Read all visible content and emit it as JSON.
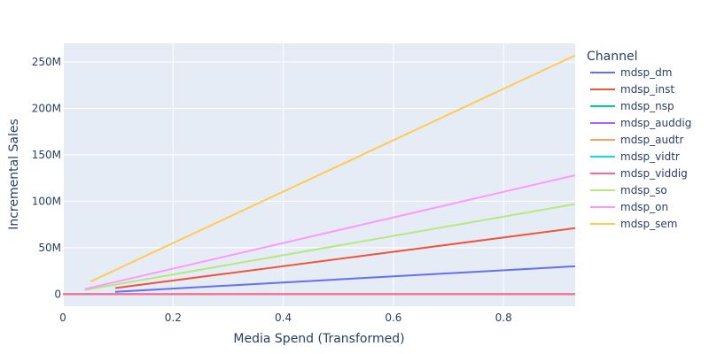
{
  "chart_data": {
    "type": "line",
    "xlabel": "Media Spend (Transformed)",
    "ylabel": "Incremental Sales",
    "xlim": [
      0,
      0.93
    ],
    "ylim": [
      -13000000,
      270000000
    ],
    "xticks": [
      {
        "value": 0,
        "label": "0"
      },
      {
        "value": 0.2,
        "label": "0.2"
      },
      {
        "value": 0.4,
        "label": "0.4"
      },
      {
        "value": 0.6,
        "label": "0.6"
      },
      {
        "value": 0.8,
        "label": "0.8"
      }
    ],
    "yticks": [
      {
        "value": 0,
        "label": "0"
      },
      {
        "value": 50000000,
        "label": "50M"
      },
      {
        "value": 100000000,
        "label": "100M"
      },
      {
        "value": 150000000,
        "label": "150M"
      },
      {
        "value": 200000000,
        "label": "200M"
      },
      {
        "value": 250000000,
        "label": "250M"
      }
    ],
    "grid": true,
    "legend": {
      "title": "Channel",
      "placement": "right"
    },
    "series": [
      {
        "name": "mdsp_dm",
        "color": "#636efa",
        "x": [
          0.095,
          0.93
        ],
        "y": [
          2500000,
          30000000
        ]
      },
      {
        "name": "mdsp_inst",
        "color": "#EF553B",
        "x": [
          0.095,
          0.93
        ],
        "y": [
          6500000,
          71000000
        ]
      },
      {
        "name": "mdsp_nsp",
        "color": "#00cc96",
        "x": [
          0,
          0.93
        ],
        "y": [
          0,
          0
        ]
      },
      {
        "name": "mdsp_auddig",
        "color": "#ab63fa",
        "x": [
          0,
          0.93
        ],
        "y": [
          0,
          0
        ]
      },
      {
        "name": "mdsp_audtr",
        "color": "#FFA15A",
        "x": [
          0,
          0.93
        ],
        "y": [
          0,
          0
        ]
      },
      {
        "name": "mdsp_vidtr",
        "color": "#19d3f3",
        "x": [
          0,
          0.13
        ],
        "y": [
          0,
          0
        ]
      },
      {
        "name": "mdsp_viddig",
        "color": "#FF6692",
        "x": [
          0,
          0.93
        ],
        "y": [
          0,
          0
        ]
      },
      {
        "name": "mdsp_so",
        "color": "#B6E880",
        "x": [
          0.04,
          0.93
        ],
        "y": [
          4500000,
          97000000
        ]
      },
      {
        "name": "mdsp_on",
        "color": "#FF97FF",
        "x": [
          0.04,
          0.93
        ],
        "y": [
          5500000,
          128000000
        ]
      },
      {
        "name": "mdsp_sem",
        "color": "#FECB52",
        "x": [
          0.05,
          0.93
        ],
        "y": [
          13500000,
          257000000
        ]
      }
    ]
  }
}
